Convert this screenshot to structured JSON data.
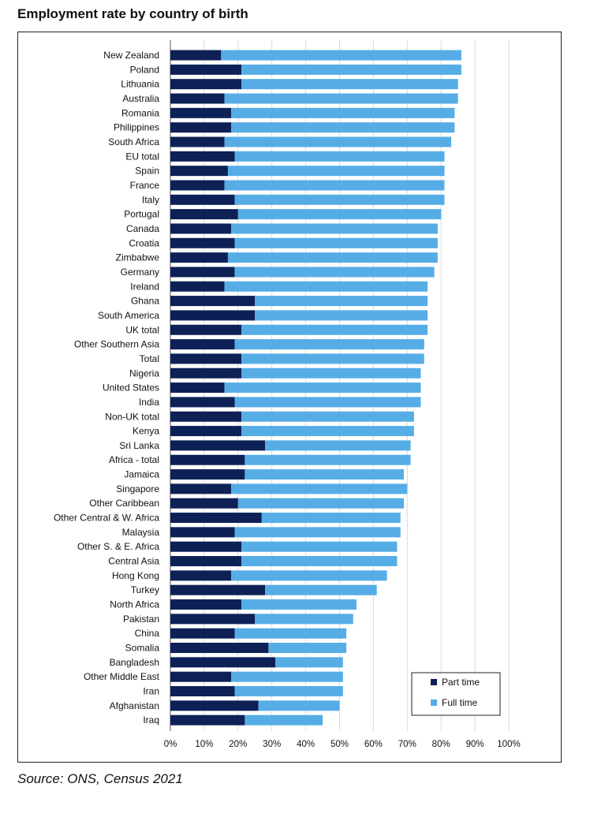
{
  "title": "Employment rate by country of birth",
  "source": "Source: ONS, Census 2021",
  "colors": {
    "part_time": "#0d2156",
    "full_time": "#56ade6",
    "grid": "#d9d9d9"
  },
  "chart_data": {
    "type": "bar",
    "orientation": "horizontal",
    "stacked": true,
    "x_unit": "percent",
    "xlim": [
      0,
      100
    ],
    "x_ticks": [
      "0%",
      "10%",
      "20%",
      "30%",
      "40%",
      "50%",
      "60%",
      "70%",
      "80%",
      "90%",
      "100%"
    ],
    "grid": "vertical",
    "legend_position": "bottom-right",
    "categories": [
      "New Zealand",
      "Poland",
      "Lithuania",
      "Australia",
      "Romania",
      "Philippines",
      "South Africa",
      "EU total",
      "Spain",
      "France",
      "Italy",
      "Portugal",
      "Canada",
      "Croatia",
      "Zimbabwe",
      "Germany",
      "Ireland",
      "Ghana",
      "South America",
      "UK total",
      "Other Southern Asia",
      "Total",
      "Nigeria",
      "United States",
      "India",
      "Non-UK total",
      "Kenya",
      "Sri Lanka",
      "Africa - total",
      "Jamaica",
      "Singapore",
      "Other Caribbean",
      "Other Central & W. Africa",
      "Malaysia",
      "Other S. & E. Africa",
      "Central Asia",
      "Hong Kong",
      "Turkey",
      "North Africa",
      "Pakistan",
      "China",
      "Somalia",
      "Bangladesh",
      "Other Middle East",
      "Iran",
      "Afghanistan",
      "Iraq"
    ],
    "series": [
      {
        "name": "Part time",
        "values": [
          15,
          21,
          21,
          16,
          18,
          18,
          16,
          19,
          17,
          16,
          19,
          20,
          18,
          19,
          17,
          19,
          16,
          25,
          25,
          21,
          19,
          21,
          21,
          16,
          19,
          21,
          21,
          28,
          22,
          22,
          18,
          20,
          27,
          19,
          21,
          21,
          18,
          28,
          21,
          25,
          19,
          29,
          31,
          18,
          19,
          26,
          22
        ]
      },
      {
        "name": "Full time",
        "values": [
          71,
          65,
          64,
          69,
          66,
          66,
          67,
          62,
          64,
          65,
          62,
          60,
          61,
          60,
          62,
          59,
          60,
          51,
          51,
          55,
          56,
          54,
          53,
          58,
          55,
          51,
          51,
          43,
          49,
          47,
          52,
          49,
          41,
          49,
          46,
          46,
          46,
          33,
          34,
          29,
          33,
          23,
          20,
          33,
          32,
          24,
          23
        ]
      }
    ]
  }
}
